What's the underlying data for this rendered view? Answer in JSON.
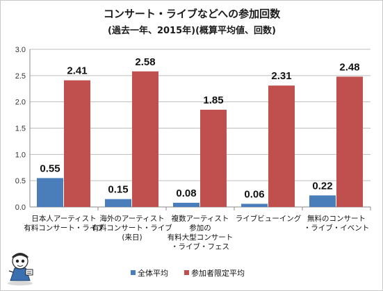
{
  "chart_data": {
    "type": "bar",
    "title": "コンサート・ライブなどへの参加回数",
    "subtitle": "(過去一年、2015年)(概算平均値、回数)",
    "categories": [
      [
        "日本人アーティスト",
        "有料コンサート・ライブ"
      ],
      [
        "海外のアーティスト",
        "有料コンサート・ライブ",
        "(来日)"
      ],
      [
        "複数アーティスト",
        "参加の",
        "有料大型コンサート",
        "・ライブ・フェス"
      ],
      [
        "ライブビューイング"
      ],
      [
        "無料のコンサート",
        "・ライブ・イベント"
      ]
    ],
    "series": [
      {
        "name": "全体平均",
        "color": "#4a7ebb",
        "values": [
          0.55,
          0.15,
          0.08,
          0.06,
          0.22
        ],
        "labels": [
          "0.55",
          "0.15",
          "0.08",
          "0.06",
          "0.22"
        ]
      },
      {
        "name": "参加者限定平均",
        "color": "#c0504d",
        "values": [
          2.41,
          2.58,
          1.85,
          2.31,
          2.48
        ],
        "labels": [
          "2.41",
          "2.58",
          "1.85",
          "2.31",
          "2.48"
        ]
      }
    ],
    "ylim": [
      0,
      3.0
    ],
    "yticks": [
      "0.0",
      "0.5",
      "1.0",
      "1.5",
      "2.0",
      "2.5",
      "3.0"
    ],
    "grid": true,
    "legend_position": "bottom"
  },
  "mascot_icon": "reporter-mascot-icon"
}
